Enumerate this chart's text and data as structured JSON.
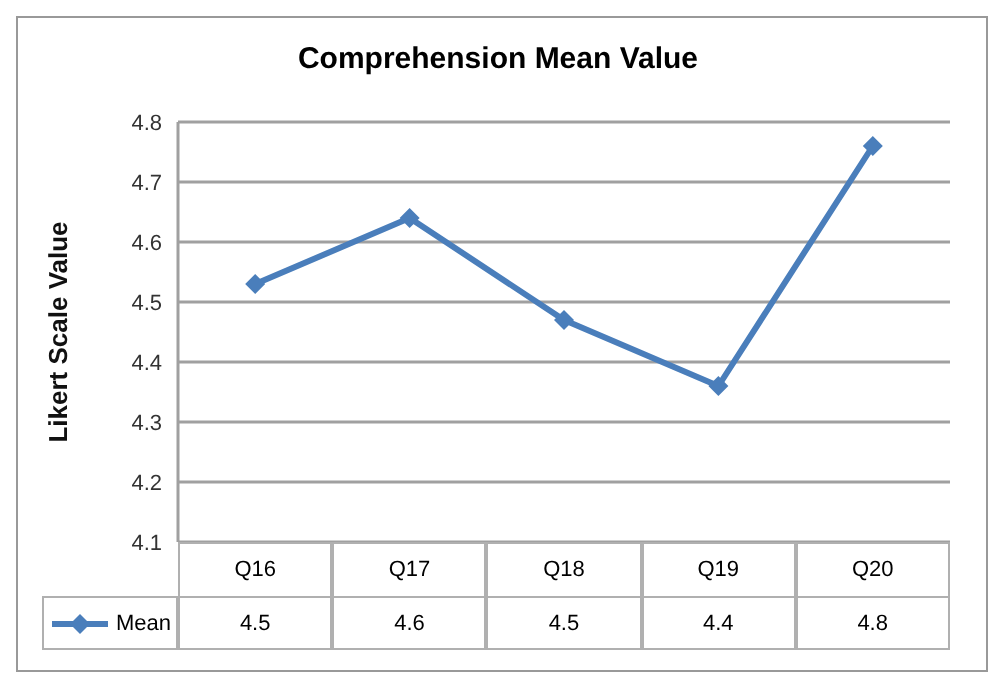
{
  "chart_data": {
    "type": "line",
    "title": "Comprehension Mean Value",
    "ylabel": "Likert Scale Value",
    "categories": [
      "Q16",
      "Q17",
      "Q18",
      "Q19",
      "Q20"
    ],
    "series": [
      {
        "name": "Mean",
        "color": "#4a7ebb",
        "values": [
          4.53,
          4.64,
          4.47,
          4.36,
          4.76
        ],
        "value_labels": [
          "4.5",
          "4.6",
          "4.5",
          "4.4",
          "4.8"
        ]
      }
    ],
    "ylim": [
      4.1,
      4.8
    ],
    "yticks": [
      4.1,
      4.2,
      4.3,
      4.4,
      4.5,
      4.6,
      4.7,
      4.8
    ],
    "grid": "y",
    "legend": "bottom left",
    "marker": "diamond",
    "line_style": "solid"
  }
}
